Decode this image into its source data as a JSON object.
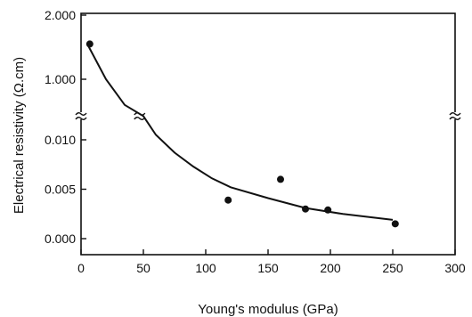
{
  "chart_data": {
    "type": "scatter",
    "title": "",
    "xlabel": "Young's modulus (GPa)",
    "ylabel": "Electrical resistivity (Ω.cm)",
    "xlim": [
      0,
      300
    ],
    "xticks": [
      "0",
      "50",
      "100",
      "150",
      "200",
      "250",
      "300"
    ],
    "ylim_lower": [
      0.0,
      0.012
    ],
    "ylim_upper": [
      0.5,
      2.0
    ],
    "yticks_lower": [
      "0.000",
      "0.005",
      "0.010"
    ],
    "yticks_upper": [
      "1.000",
      "2.000"
    ],
    "broken_y_axis": true,
    "grid": false,
    "series": [
      {
        "kind": "points",
        "x": [
          7,
          118,
          160,
          180,
          198,
          252
        ],
        "y": [
          1.55,
          0.0039,
          0.006,
          0.003,
          0.0029,
          0.0015
        ]
      },
      {
        "kind": "fitted-curve",
        "x": [
          5,
          20,
          35,
          50,
          60,
          75,
          90,
          105,
          120,
          150,
          180,
          210,
          250
        ],
        "y": [
          1.55,
          1.0,
          0.6,
          0.0124,
          0.0105,
          0.0087,
          0.0073,
          0.0061,
          0.0052,
          0.0041,
          0.0031,
          0.0025,
          0.0019
        ]
      }
    ],
    "colors": {
      "ink": "#111111",
      "background": "#ffffff"
    }
  }
}
